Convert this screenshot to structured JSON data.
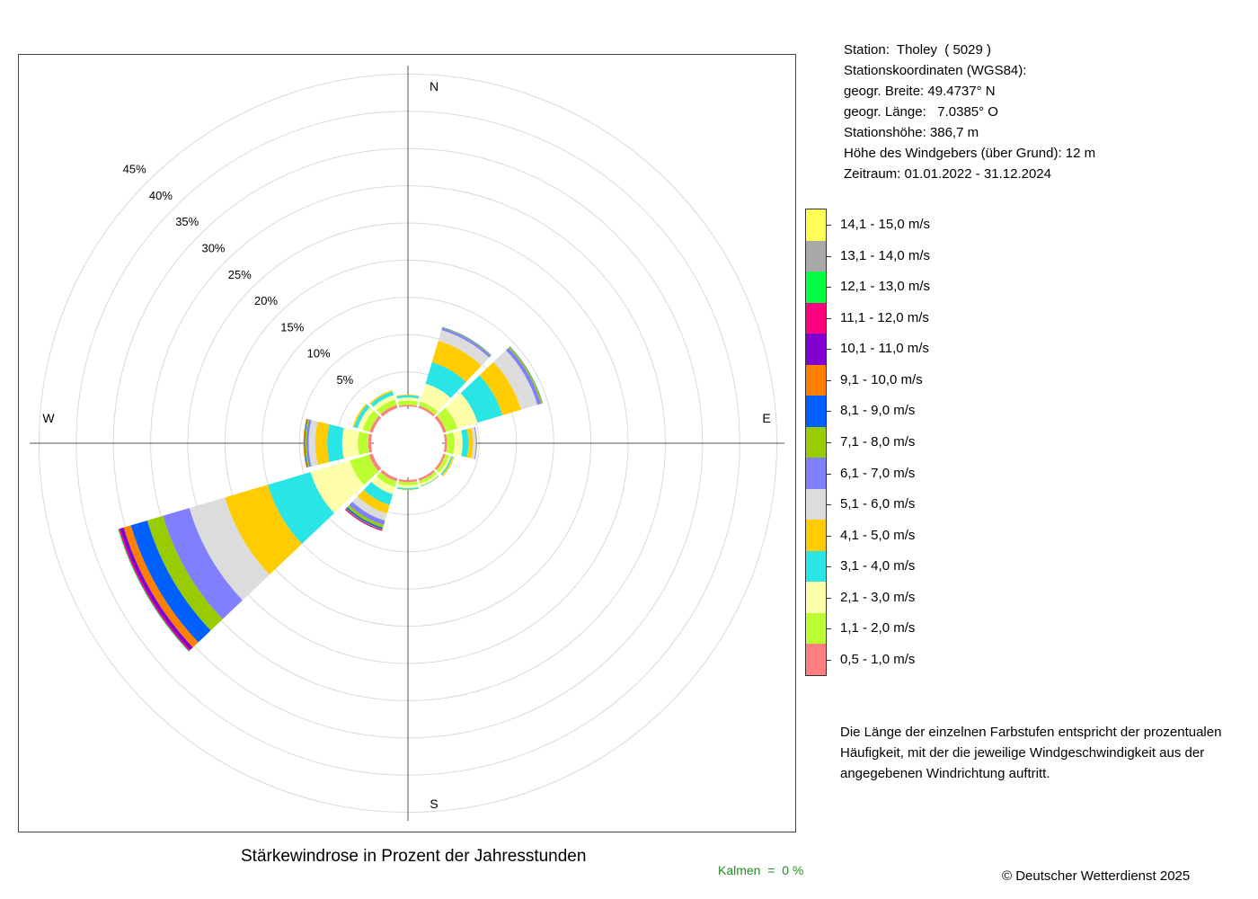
{
  "station": {
    "line_station": "Station:  Tholey  ( 5029 )",
    "line_coords": "Stationskoordinaten (WGS84):",
    "line_lat": "geogr. Breite: 49.4737° N",
    "line_lon": "geogr. Länge:   7.0385° O",
    "line_height": "Stationshöhe: 386,7 m",
    "line_sensor": "Höhe des Windgebers (über Grund): 12 m",
    "line_period": "Zeitraum: 01.01.2022 - 31.12.2024"
  },
  "legend": {
    "items": [
      {
        "label": "14,1 - 15,0 m/s",
        "color": "#ffff55"
      },
      {
        "label": "13,1 - 14,0 m/s",
        "color": "#a9a9a9"
      },
      {
        "label": "12,1 - 13,0 m/s",
        "color": "#00ff40"
      },
      {
        "label": "11,1 - 12,0 m/s",
        "color": "#ff0080"
      },
      {
        "label": "10,1 - 11,0 m/s",
        "color": "#8000d0"
      },
      {
        "label": "9,1 - 10,0 m/s",
        "color": "#ff8000"
      },
      {
        "label": "8,1 - 9,0 m/s",
        "color": "#0060ff"
      },
      {
        "label": "7,1 - 8,0 m/s",
        "color": "#99cc00"
      },
      {
        "label": "6,1 - 7,0 m/s",
        "color": "#8080ff"
      },
      {
        "label": "5,1 - 6,0 m/s",
        "color": "#dcdcdc"
      },
      {
        "label": "4,1 - 5,0 m/s",
        "color": "#ffcc00"
      },
      {
        "label": "3,1 - 4,0 m/s",
        "color": "#2ae5e5"
      },
      {
        "label": "2,1 - 3,0 m/s",
        "color": "#ffffaa"
      },
      {
        "label": "1,1 - 2,0 m/s",
        "color": "#bbff33"
      },
      {
        "label": "0,5 - 1,0 m/s",
        "color": "#ff7f7f"
      }
    ]
  },
  "note": "Die Länge der einzelnen Farbstufen entspricht der prozentualen Häufigkeit, mit der die jeweilige Windgeschwindigkeit aus der angegebenen Windrichtung auftritt.",
  "title": "Stärkewindrose in Prozent der Jahresstunden",
  "copyright": "© Deutscher Wetterdienst  2025",
  "kalmen": "Kalmen  =  0 %",
  "chart_data": {
    "type": "windrose",
    "directions": [
      "N",
      "E",
      "S",
      "W"
    ],
    "ring_labels": [
      "5%",
      "10%",
      "15%",
      "20%",
      "25%",
      "30%",
      "35%",
      "40%",
      "45%"
    ],
    "rings": [
      5,
      10,
      15,
      20,
      25,
      30,
      35,
      40,
      45
    ],
    "calm_percent": 0,
    "speed_classes": [
      "0,5 - 1,0 m/s",
      "1,1 - 2,0 m/s",
      "2,1 - 3,0 m/s",
      "3,1 - 4,0 m/s",
      "4,1 - 5,0 m/s",
      "5,1 - 6,0 m/s",
      "6,1 - 7,0 m/s",
      "7,1 - 8,0 m/s",
      "8,1 - 9,0 m/s",
      "9,1 - 10,0 m/s",
      "10,1 - 11,0 m/s",
      "11,1 - 12,0 m/s",
      "12,1 - 13,0 m/s",
      "13,1 - 14,0 m/s",
      "14,1 - 15,0 m/s"
    ],
    "sectors": [
      {
        "direction_deg": 0,
        "values": [
          0.2,
          0.6,
          0.4,
          0.3,
          0.1
        ]
      },
      {
        "direction_deg": 30,
        "values": [
          0.3,
          0.6,
          2.5,
          3.0,
          3.0,
          1.5,
          0.3,
          0.1,
          0.05
        ]
      },
      {
        "direction_deg": 60,
        "values": [
          0.4,
          1.6,
          2.8,
          3.5,
          2.6,
          2.3,
          0.5,
          0.2,
          0.05
        ]
      },
      {
        "direction_deg": 90,
        "values": [
          0.3,
          1.0,
          1.1,
          0.8,
          0.6,
          0.4,
          0.1,
          0.05
        ]
      },
      {
        "direction_deg": 120,
        "values": [
          0.3,
          0.5,
          0.3,
          0.2,
          0.2,
          0.1
        ]
      },
      {
        "direction_deg": 150,
        "values": [
          0.3,
          0.4,
          0.3,
          0.1,
          0.05
        ]
      },
      {
        "direction_deg": 180,
        "values": [
          0.3,
          0.4,
          0.4,
          0.2,
          0.05
        ]
      },
      {
        "direction_deg": 210,
        "values": [
          0.4,
          0.8,
          1.0,
          1.5,
          1.2,
          1.0,
          0.6,
          0.4,
          0.2,
          0.1,
          0.1,
          0.05
        ]
      },
      {
        "direction_deg": 240,
        "values": [
          0.5,
          2.7,
          5.5,
          6.0,
          6.0,
          5.0,
          3.7,
          2.2,
          2.3,
          1.0,
          0.5,
          0.2,
          0.1
        ]
      },
      {
        "direction_deg": 270,
        "values": [
          0.4,
          1.4,
          2.1,
          2.0,
          1.6,
          0.9,
          0.3,
          0.2,
          0.1,
          0.1
        ]
      },
      {
        "direction_deg": 300,
        "values": [
          0.4,
          1.0,
          0.7,
          0.5,
          0.2
        ]
      },
      {
        "direction_deg": 330,
        "values": [
          0.4,
          0.8,
          0.6,
          0.5,
          0.2
        ]
      }
    ]
  }
}
